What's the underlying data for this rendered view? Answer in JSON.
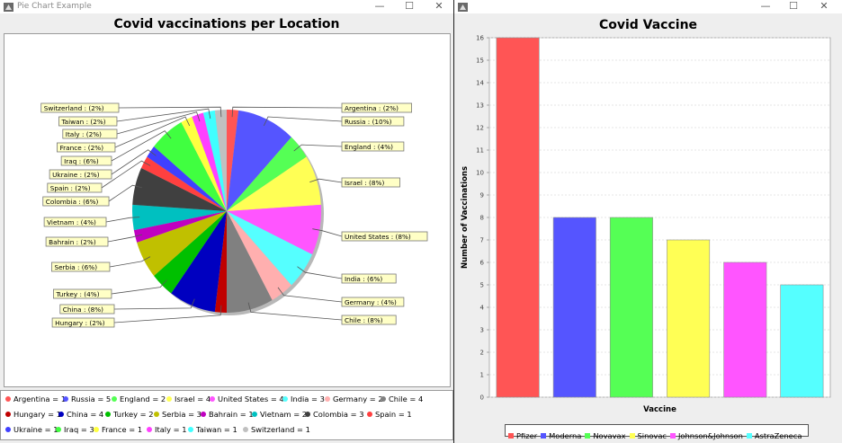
{
  "left_window": {
    "title": "Pie Chart Example",
    "controls": {
      "minimize": "—",
      "maximize": "☐",
      "close": "✕"
    },
    "icon": "java-app-icon"
  },
  "right_window": {
    "title": "",
    "controls": {
      "minimize": "—",
      "maximize": "☐",
      "close": "✕"
    },
    "icon": "java-app-icon"
  },
  "chart_data": [
    {
      "type": "pie",
      "title": "Covid vaccinations per Location",
      "slices": [
        {
          "name": "Argentina",
          "value": 1,
          "label": "Argentina : (2%)",
          "legend": "Argentina = 1",
          "color": "#ff5555"
        },
        {
          "name": "Russia",
          "value": 5,
          "label": "Russia : (10%)",
          "legend": "Russia = 5",
          "color": "#5555ff"
        },
        {
          "name": "England",
          "value": 2,
          "label": "England : (4%)",
          "legend": "England = 2",
          "color": "#55ff55"
        },
        {
          "name": "Israel",
          "value": 4,
          "label": "Israel : (8%)",
          "legend": "Israel = 4",
          "color": "#ffff55"
        },
        {
          "name": "United States",
          "value": 4,
          "label": "United States : (8%)",
          "legend": "United States = 4",
          "color": "#ff55ff"
        },
        {
          "name": "India",
          "value": 3,
          "label": "India : (6%)",
          "legend": "India = 3",
          "color": "#55ffff"
        },
        {
          "name": "Germany",
          "value": 2,
          "label": "Germany : (4%)",
          "legend": "Germany = 2",
          "color": "#ffafaf"
        },
        {
          "name": "Chile",
          "value": 4,
          "label": "Chile : (8%)",
          "legend": "Chile = 4",
          "color": "#808080"
        },
        {
          "name": "Hungary",
          "value": 1,
          "label": "Hungary : (2%)",
          "legend": "Hungary = 1",
          "color": "#c00000"
        },
        {
          "name": "China",
          "value": 4,
          "label": "China : (8%)",
          "legend": "China = 4",
          "color": "#0000c0"
        },
        {
          "name": "Turkey",
          "value": 2,
          "label": "Turkey : (4%)",
          "legend": "Turkey = 2",
          "color": "#00c000"
        },
        {
          "name": "Serbia",
          "value": 3,
          "label": "Serbia : (6%)",
          "legend": "Serbia = 3",
          "color": "#c0c000"
        },
        {
          "name": "Bahrain",
          "value": 1,
          "label": "Bahrain : (2%)",
          "legend": "Bahrain = 1",
          "color": "#c000c0"
        },
        {
          "name": "Vietnam",
          "value": 2,
          "label": "Vietnam : (4%)",
          "legend": "Vietnam = 2",
          "color": "#00c0c0"
        },
        {
          "name": "Colombia",
          "value": 3,
          "label": "Colombia : (6%)",
          "legend": "Colombia = 3",
          "color": "#404040"
        },
        {
          "name": "Spain",
          "value": 1,
          "label": "Spain : (2%)",
          "legend": "Spain = 1",
          "color": "#ff4040"
        },
        {
          "name": "Ukraine",
          "value": 1,
          "label": "Ukraine : (2%)",
          "legend": "Ukraine = 1",
          "color": "#4040ff"
        },
        {
          "name": "Iraq",
          "value": 3,
          "label": "Iraq : (6%)",
          "legend": "Iraq = 3",
          "color": "#40ff40"
        },
        {
          "name": "France",
          "value": 1,
          "label": "France : (2%)",
          "legend": "France = 1",
          "color": "#ffff40"
        },
        {
          "name": "Italy",
          "value": 1,
          "label": "Italy : (2%)",
          "legend": "Italy = 1",
          "color": "#ff40ff"
        },
        {
          "name": "Taiwan",
          "value": 1,
          "label": "Taiwan : (2%)",
          "legend": "Taiwan = 1",
          "color": "#40ffff"
        },
        {
          "name": "Switzerland",
          "value": 1,
          "label": "Switzerland : (2%)",
          "legend": "Switzerland = 1",
          "color": "#c0c0c0"
        }
      ]
    },
    {
      "type": "bar",
      "title": "Covid Vaccine",
      "xlabel": "Vaccine",
      "ylabel": "Number of Vaccinations",
      "categories": [
        "Pfizer",
        "Moderna",
        "Novavax",
        "Sinovac",
        "Johnson&Johnson",
        "AstraZeneca"
      ],
      "values": [
        16,
        8,
        8,
        7,
        6,
        5
      ],
      "colors": [
        "#ff5555",
        "#5555ff",
        "#55ff55",
        "#ffff55",
        "#ff55ff",
        "#55ffff"
      ],
      "ylim": [
        0,
        16
      ],
      "yticks": [
        0,
        1,
        2,
        3,
        4,
        5,
        6,
        7,
        8,
        9,
        10,
        11,
        12,
        13,
        14,
        15,
        16
      ],
      "grid": true,
      "legend_position": "bottom"
    }
  ]
}
